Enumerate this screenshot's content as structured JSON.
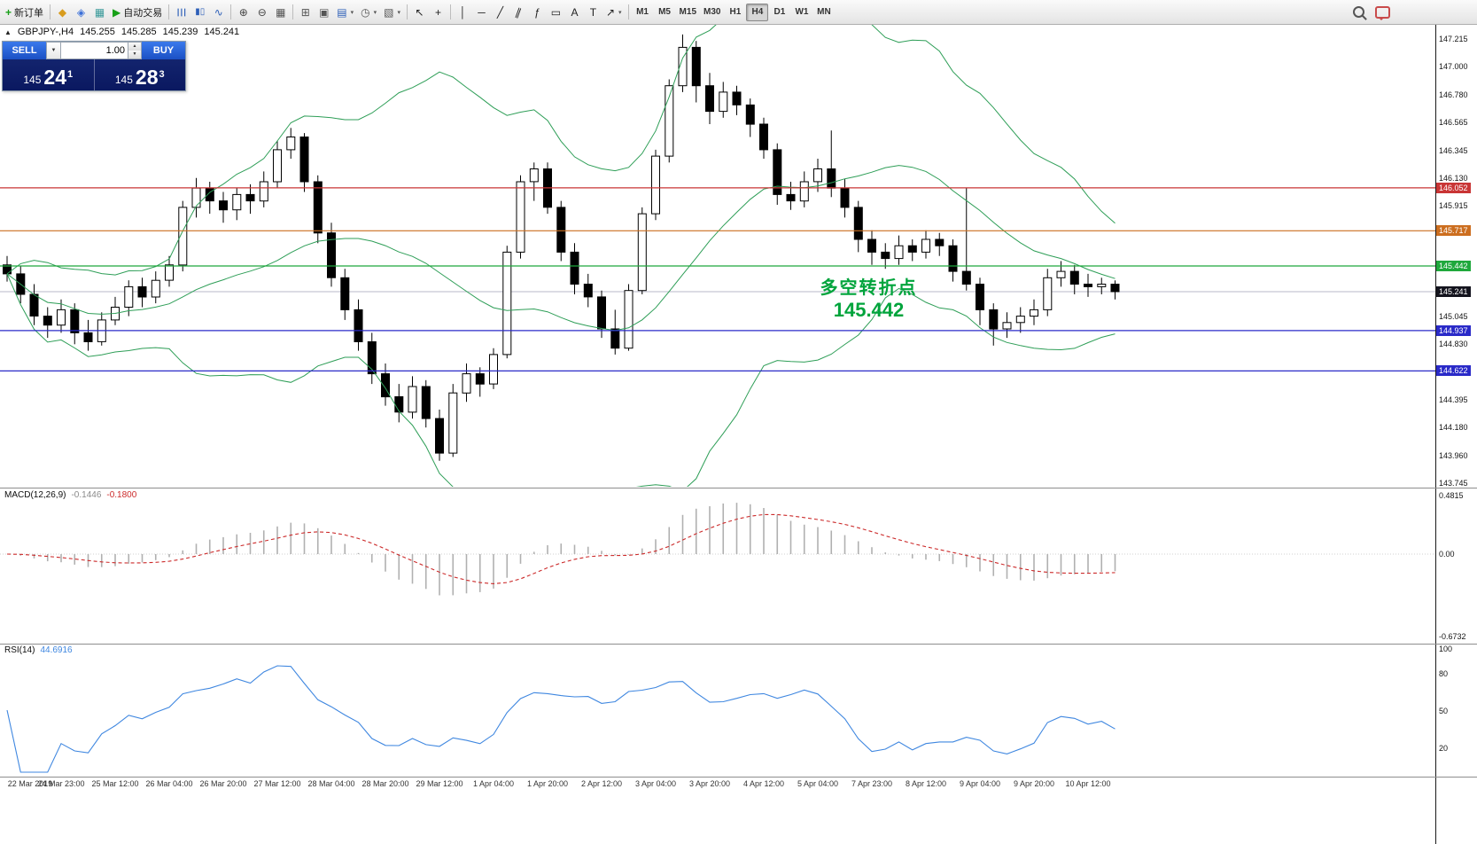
{
  "toolbar": {
    "new_order_label": "新订单",
    "new_order_icon": "+",
    "autotrading_label": "自动交易",
    "autotrading_icon": "▶",
    "dropdown_caret": "▾",
    "icon_groups": {
      "left": [
        {
          "name": "market-watch-icon",
          "glyph": "◆",
          "color": "#d89c1e"
        },
        {
          "name": "navigator-icon",
          "glyph": "◈",
          "color": "#3a6fd8"
        },
        {
          "name": "terminal-icon",
          "glyph": "▦",
          "color": "#3a9a9a"
        }
      ],
      "main": [
        {
          "name": "bar-chart-icon",
          "glyph": "☰",
          "color": "#2d5fb8",
          "rot": 90
        },
        {
          "name": "candlestick-chart-icon",
          "glyph": "▮▯",
          "color": "#2d5fb8",
          "size": 10
        },
        {
          "name": "line-chart-icon",
          "glyph": "∿",
          "color": "#2d5fb8"
        },
        {
          "sep": true
        },
        {
          "name": "zoom-in-icon",
          "glyph": "⊕",
          "color": "#444444"
        },
        {
          "name": "zoom-out-icon",
          "glyph": "⊖",
          "color": "#444444"
        },
        {
          "name": "grid-icon",
          "glyph": "▦",
          "color": "#555555"
        },
        {
          "sep": true
        },
        {
          "name": "tile-windows-icon",
          "glyph": "⊞",
          "color": "#555555"
        },
        {
          "name": "cascade-windows-icon",
          "glyph": "▣",
          "color": "#555555"
        },
        {
          "name": "new-chart-button",
          "glyph": "▤",
          "color": "#2d5fb8",
          "dd": true
        },
        {
          "name": "profiles-button",
          "glyph": "◷",
          "color": "#555555",
          "dd": true
        },
        {
          "name": "templates-button",
          "glyph": "▧",
          "color": "#555555",
          "dd": true
        },
        {
          "sep": true
        },
        {
          "name": "cursor-icon",
          "glyph": "↖",
          "color": "#222222"
        },
        {
          "name": "crosshair-icon",
          "glyph": "+",
          "color": "#222222"
        },
        {
          "sep": true
        },
        {
          "name": "vertical-line-icon",
          "glyph": "│",
          "color": "#222222"
        },
        {
          "name": "horizontal-line-icon",
          "glyph": "─",
          "color": "#222222"
        },
        {
          "name": "trendline-icon",
          "glyph": "╱",
          "color": "#222222"
        },
        {
          "name": "channel-icon",
          "glyph": "∥",
          "color": "#222222",
          "rot": 20
        },
        {
          "name": "fibonacci-icon",
          "glyph": "ƒ",
          "color": "#222222"
        },
        {
          "name": "shapes-icon",
          "glyph": "▭",
          "color": "#222222"
        },
        {
          "name": "text-icon",
          "glyph": "A",
          "color": "#222222"
        },
        {
          "name": "text-label-icon",
          "glyph": "T",
          "color": "#222222"
        },
        {
          "name": "arrows-icon",
          "glyph": "↗",
          "color": "#222222",
          "dd": true
        }
      ],
      "right": [
        {
          "name": "search-icon",
          "cls": "icon-search"
        },
        {
          "name": "chat-icon",
          "cls": "icon-bubble"
        }
      ]
    },
    "timeframes": {
      "items": [
        "M1",
        "M5",
        "M15",
        "M30",
        "H1",
        "H4",
        "D1",
        "W1",
        "MN"
      ],
      "active": "H4"
    }
  },
  "symbol_info": {
    "marker": "▲",
    "symbol": "GBPJPY-,H4",
    "open": "145.255",
    "high": "145.285",
    "low": "145.239",
    "close": "145.241"
  },
  "trade_panel": {
    "sell_label": "SELL",
    "buy_label": "BUY",
    "volume": "1.00",
    "combo_caret": "▼",
    "spin_up": "▲",
    "spin_down": "▼",
    "sell_price": {
      "main": "145",
      "pips": "24",
      "pt": "1"
    },
    "buy_price": {
      "main": "145",
      "pips": "28",
      "pt": "3"
    }
  },
  "annotation": {
    "line1": "多空转折点",
    "line2": "145.442",
    "color": "#00a43c"
  },
  "chart_data": {
    "type": "candlestick",
    "symbol": "GBPJPY-",
    "timeframe": "H4",
    "price_axis": {
      "min": 143.745,
      "max": 147.215,
      "plain_labels": [
        147.215,
        147.0,
        146.78,
        146.565,
        146.345,
        146.13,
        145.915,
        145.045,
        144.83,
        144.395,
        144.18,
        143.96,
        143.745
      ]
    },
    "current_price": 145.241,
    "levels": [
      {
        "price": 146.052,
        "color": "#c93535"
      },
      {
        "price": 145.717,
        "color": "#cc6e1f"
      },
      {
        "price": 145.442,
        "color": "#1fa83c"
      },
      {
        "price": 144.937,
        "color": "#2a2ac8"
      },
      {
        "price": 144.622,
        "color": "#2a2ac8"
      }
    ],
    "time_labels": [
      "22 Mar 2019",
      "24 Mar 23:00",
      "25 Mar 12:00",
      "26 Mar 04:00",
      "26 Mar 20:00",
      "27 Mar 12:00",
      "28 Mar 04:00",
      "28 Mar 20:00",
      "29 Mar 12:00",
      "1 Apr 04:00",
      "1 Apr 20:00",
      "2 Apr 12:00",
      "3 Apr 04:00",
      "3 Apr 20:00",
      "4 Apr 12:00",
      "5 Apr 04:00",
      "7 Apr 23:00",
      "8 Apr 12:00",
      "9 Apr 04:00",
      "9 Apr 20:00",
      "10 Apr 12:00"
    ],
    "candles": [
      [
        145.45,
        145.52,
        145.32,
        145.38
      ],
      [
        145.38,
        145.44,
        145.15,
        145.22
      ],
      [
        145.22,
        145.3,
        144.98,
        145.05
      ],
      [
        145.05,
        145.12,
        144.88,
        144.98
      ],
      [
        144.98,
        145.18,
        144.92,
        145.1
      ],
      [
        145.1,
        145.15,
        144.83,
        144.92
      ],
      [
        144.92,
        145.02,
        144.78,
        144.85
      ],
      [
        144.85,
        145.08,
        144.82,
        145.02
      ],
      [
        145.02,
        145.2,
        144.98,
        145.12
      ],
      [
        145.12,
        145.33,
        145.05,
        145.28
      ],
      [
        145.28,
        145.35,
        145.12,
        145.2
      ],
      [
        145.2,
        145.4,
        145.15,
        145.33
      ],
      [
        145.33,
        145.52,
        145.28,
        145.45
      ],
      [
        145.45,
        145.95,
        145.4,
        145.9
      ],
      [
        145.9,
        146.13,
        145.82,
        146.05
      ],
      [
        146.05,
        146.1,
        145.85,
        145.95
      ],
      [
        145.95,
        146.02,
        145.78,
        145.88
      ],
      [
        145.88,
        146.05,
        145.8,
        146.0
      ],
      [
        146.0,
        146.08,
        145.85,
        145.95
      ],
      [
        145.95,
        146.18,
        145.9,
        146.1
      ],
      [
        146.1,
        146.42,
        146.05,
        146.35
      ],
      [
        146.35,
        146.52,
        146.28,
        146.45
      ],
      [
        146.45,
        146.48,
        146.02,
        146.1
      ],
      [
        146.1,
        146.15,
        145.62,
        145.7
      ],
      [
        145.7,
        145.78,
        145.28,
        145.35
      ],
      [
        145.35,
        145.42,
        145.02,
        145.1
      ],
      [
        145.1,
        145.18,
        144.78,
        144.85
      ],
      [
        144.85,
        144.92,
        144.52,
        144.6
      ],
      [
        144.6,
        144.68,
        144.35,
        144.42
      ],
      [
        144.42,
        144.52,
        144.22,
        144.3
      ],
      [
        144.3,
        144.58,
        144.25,
        144.5
      ],
      [
        144.5,
        144.55,
        144.18,
        144.25
      ],
      [
        144.25,
        144.32,
        143.92,
        143.98
      ],
      [
        143.98,
        144.52,
        143.95,
        144.45
      ],
      [
        144.45,
        144.68,
        144.38,
        144.6
      ],
      [
        144.6,
        144.65,
        144.42,
        144.52
      ],
      [
        144.52,
        144.8,
        144.48,
        144.75
      ],
      [
        144.75,
        145.6,
        144.72,
        145.55
      ],
      [
        145.55,
        146.15,
        145.5,
        146.1
      ],
      [
        146.1,
        146.25,
        145.95,
        146.2
      ],
      [
        146.2,
        146.25,
        145.85,
        145.9
      ],
      [
        145.9,
        145.95,
        145.48,
        145.55
      ],
      [
        145.55,
        145.62,
        145.22,
        145.3
      ],
      [
        145.3,
        145.38,
        145.12,
        145.2
      ],
      [
        145.2,
        145.25,
        144.88,
        144.95
      ],
      [
        144.95,
        145.1,
        144.75,
        144.8
      ],
      [
        144.8,
        145.3,
        144.78,
        145.25
      ],
      [
        145.25,
        145.9,
        145.22,
        145.85
      ],
      [
        145.85,
        146.35,
        145.8,
        146.3
      ],
      [
        146.3,
        146.9,
        146.25,
        146.85
      ],
      [
        146.85,
        147.25,
        146.8,
        147.15
      ],
      [
        147.15,
        147.2,
        146.72,
        146.85
      ],
      [
        146.85,
        146.95,
        146.55,
        146.65
      ],
      [
        146.65,
        146.88,
        146.6,
        146.8
      ],
      [
        146.8,
        146.85,
        146.62,
        146.7
      ],
      [
        146.7,
        146.75,
        146.45,
        146.55
      ],
      [
        146.55,
        146.6,
        146.28,
        146.35
      ],
      [
        146.35,
        146.4,
        145.92,
        146.0
      ],
      [
        146.0,
        146.1,
        145.88,
        145.95
      ],
      [
        145.95,
        146.18,
        145.9,
        146.1
      ],
      [
        146.1,
        146.28,
        146.02,
        146.2
      ],
      [
        146.2,
        146.5,
        145.98,
        146.05
      ],
      [
        146.05,
        146.12,
        145.82,
        145.9
      ],
      [
        145.9,
        145.95,
        145.55,
        145.65
      ],
      [
        145.65,
        145.72,
        145.45,
        145.55
      ],
      [
        145.55,
        145.62,
        145.42,
        145.5
      ],
      [
        145.5,
        145.68,
        145.45,
        145.6
      ],
      [
        145.6,
        145.65,
        145.48,
        145.55
      ],
      [
        145.55,
        145.72,
        145.5,
        145.65
      ],
      [
        145.65,
        145.7,
        145.52,
        145.6
      ],
      [
        145.6,
        145.65,
        145.32,
        145.4
      ],
      [
        145.4,
        146.05,
        145.25,
        145.3
      ],
      [
        145.3,
        145.35,
        144.98,
        145.1
      ],
      [
        145.1,
        145.15,
        144.82,
        144.95
      ],
      [
        144.95,
        145.08,
        144.88,
        145.0
      ],
      [
        145.0,
        145.12,
        144.92,
        145.05
      ],
      [
        145.05,
        145.18,
        144.98,
        145.1
      ],
      [
        145.1,
        145.42,
        145.05,
        145.35
      ],
      [
        145.35,
        145.48,
        145.28,
        145.4
      ],
      [
        145.4,
        145.45,
        145.22,
        145.3
      ],
      [
        145.3,
        145.38,
        145.2,
        145.28
      ],
      [
        145.28,
        145.35,
        145.22,
        145.3
      ],
      [
        145.3,
        145.33,
        145.18,
        145.241
      ]
    ],
    "indicators": {
      "bollinger": {
        "period": 20,
        "deviation": 2,
        "color": "#2e9e57"
      },
      "macd": {
        "label": "MACD(12,26,9)",
        "value": "-0.1446",
        "signal_value": "-0.1800",
        "scale_max": "0.4815",
        "scale_zero": "0.00",
        "scale_min": "-0.6732",
        "histogram_color": "#b0b0b0",
        "signal_color": "#cc2b2b"
      },
      "rsi": {
        "label": "RSI(14)",
        "value": "44.6916",
        "color": "#3f87e0",
        "scale_labels": [
          100,
          80,
          50,
          20
        ]
      }
    }
  }
}
